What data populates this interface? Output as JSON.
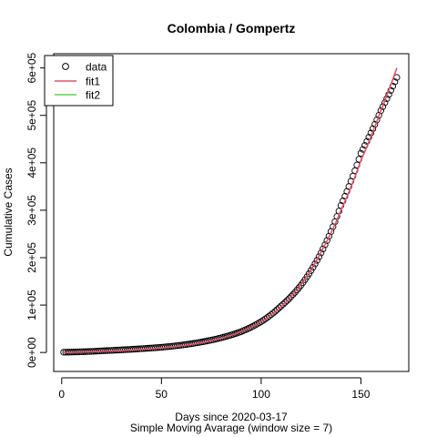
{
  "chart_data": {
    "type": "scatter",
    "title": "Colombia / Gompertz",
    "xlabel": "Days since 2020-03-17",
    "xlabel_sub": "Simple Moving Avarage (window size = 7)",
    "ylabel": "Cumulative Cases",
    "xlim": [
      -4,
      174
    ],
    "ylim": [
      -40000,
      630000
    ],
    "x_ticks": [
      0,
      50,
      100,
      150
    ],
    "x_tick_labels": [
      "0",
      "50",
      "100",
      "150"
    ],
    "y_ticks": [
      0,
      100000,
      200000,
      300000,
      400000,
      500000,
      600000
    ],
    "y_tick_labels": [
      "0e+00",
      "1e+05",
      "2e+05",
      "3e+05",
      "4e+05",
      "5e+05",
      "6e+05"
    ],
    "legend": {
      "position": "top-left",
      "entries": [
        {
          "label": "data",
          "symbol": "circle",
          "color": "#000000"
        },
        {
          "label": "fit1",
          "symbol": "line",
          "color": "#DF536B"
        },
        {
          "label": "fit2",
          "symbol": "line",
          "color": "#61D04F"
        }
      ]
    },
    "series": [
      {
        "name": "data",
        "kind": "points",
        "color": "#000000",
        "x_start": 1,
        "x_end": 168,
        "values_at_x": [
          [
            0,
            500
          ],
          [
            10,
            1500
          ],
          [
            20,
            3500
          ],
          [
            30,
            5500
          ],
          [
            40,
            8000
          ],
          [
            50,
            11000
          ],
          [
            60,
            15500
          ],
          [
            70,
            22000
          ],
          [
            80,
            31000
          ],
          [
            90,
            44000
          ],
          [
            100,
            65000
          ],
          [
            110,
            98000
          ],
          [
            120,
            142000
          ],
          [
            130,
            210000
          ],
          [
            140,
            310000
          ],
          [
            150,
            420000
          ],
          [
            160,
            510000
          ],
          [
            168,
            580000
          ]
        ]
      },
      {
        "name": "fit1",
        "kind": "line",
        "color": "#DF536B",
        "x_start": 1,
        "x_end": 168,
        "values_at_x": [
          [
            0,
            0
          ],
          [
            10,
            1000
          ],
          [
            20,
            2500
          ],
          [
            30,
            4000
          ],
          [
            40,
            6500
          ],
          [
            50,
            9500
          ],
          [
            60,
            14000
          ],
          [
            70,
            20500
          ],
          [
            80,
            30000
          ],
          [
            90,
            44000
          ],
          [
            100,
            65000
          ],
          [
            110,
            97000
          ],
          [
            120,
            144000
          ],
          [
            130,
            212000
          ],
          [
            140,
            300000
          ],
          [
            150,
            405000
          ],
          [
            160,
            510000
          ],
          [
            168,
            600000
          ]
        ]
      },
      {
        "name": "fit2",
        "kind": "line",
        "color": "#61D04F",
        "values_at_x": []
      }
    ]
  }
}
